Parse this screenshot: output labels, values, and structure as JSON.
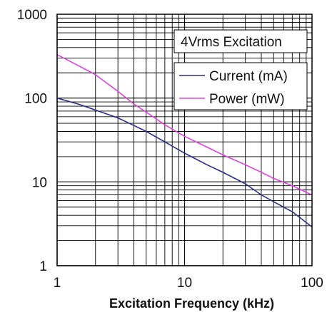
{
  "chart_data": {
    "type": "line",
    "title": "",
    "xlabel": "Excitation Frequency (kHz)",
    "ylabel": "",
    "x_scale": "log",
    "y_scale": "log",
    "xlim": [
      1,
      100
    ],
    "ylim": [
      1,
      1000
    ],
    "grid": true,
    "annotation": "4Vrms Excitation",
    "legend_position": "top-right",
    "x_ticks": [
      "1",
      "10",
      "100"
    ],
    "y_ticks": [
      "1",
      "10",
      "100",
      "1000"
    ],
    "series": [
      {
        "name": "Current (mA)",
        "color": "#2b2b8c",
        "x": [
          1,
          1.5,
          2,
          3,
          4,
          5,
          7,
          10,
          15,
          20,
          30,
          40,
          50,
          70,
          100
        ],
        "y": [
          100,
          84,
          72,
          58,
          47,
          40,
          30,
          22,
          16,
          13,
          9.5,
          7,
          5.8,
          4.4,
          2.9
        ]
      },
      {
        "name": "Power (mW)",
        "color": "#e040e0",
        "x": [
          1,
          1.5,
          2,
          3,
          4,
          5,
          7,
          10,
          15,
          20,
          30,
          40,
          50,
          70,
          100
        ],
        "y": [
          330,
          240,
          190,
          120,
          85,
          68,
          48,
          35,
          26,
          21,
          16,
          13,
          11,
          9,
          7
        ]
      }
    ]
  }
}
